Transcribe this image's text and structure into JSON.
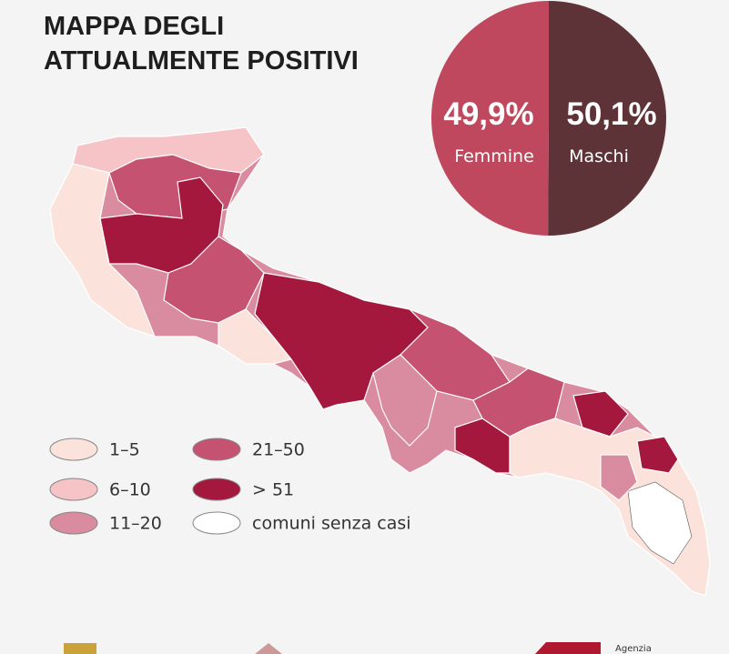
{
  "title_lines": [
    "MAPPA DEGLI",
    "ATTUALMENTE POSITIVI"
  ],
  "chart_data": {
    "type": "pie",
    "categories": [
      "Femmine",
      "Maschi"
    ],
    "values": [
      49.9,
      50.1
    ],
    "value_labels": [
      "49,9%",
      "50,1%"
    ],
    "colors": [
      "#c0485e",
      "#5e3338"
    ]
  },
  "legend": {
    "items": [
      {
        "label": "1–5",
        "color": "#fbe3dc"
      },
      {
        "label": "6–10",
        "color": "#f6c3c6"
      },
      {
        "label": "11–20",
        "color": "#d98ba0"
      },
      {
        "label": "21–50",
        "color": "#c45270"
      },
      {
        "label": "> 51",
        "color": "#a5183e"
      },
      {
        "label": "comuni senza casi",
        "color": "#ffffff"
      }
    ]
  },
  "footer": {
    "agency": "Agenzia"
  }
}
